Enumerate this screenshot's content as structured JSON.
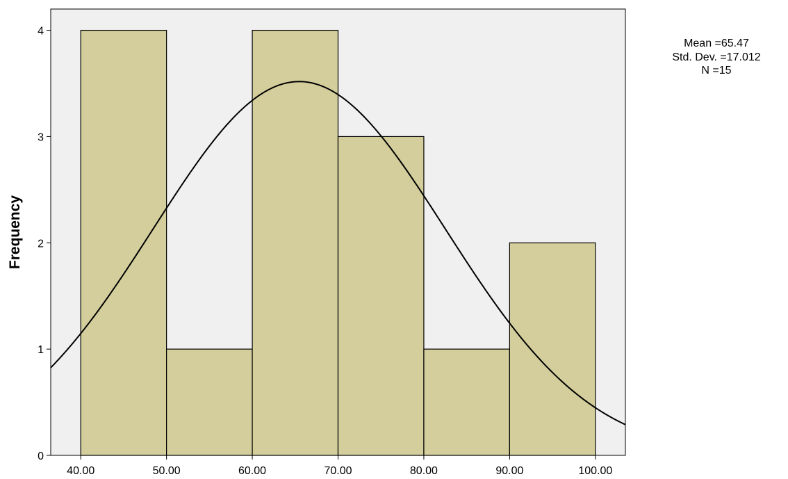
{
  "chart_data": {
    "type": "bar",
    "subtype": "histogram",
    "title": "",
    "xlabel": "",
    "ylabel": "Frequency",
    "bins": [
      {
        "from": 40,
        "to": 50,
        "frequency": 4
      },
      {
        "from": 50,
        "to": 60,
        "frequency": 1
      },
      {
        "from": 60,
        "to": 70,
        "frequency": 4
      },
      {
        "from": 70,
        "to": 80,
        "frequency": 3
      },
      {
        "from": 80,
        "to": 90,
        "frequency": 1
      },
      {
        "from": 90,
        "to": 100,
        "frequency": 2
      }
    ],
    "xlim": [
      36.5,
      103.5
    ],
    "ylim": [
      0,
      4.2
    ],
    "x_ticks": [
      40,
      50,
      60,
      70,
      80,
      90,
      100
    ],
    "x_tick_labels": [
      "40.00",
      "50.00",
      "60.00",
      "70.00",
      "80.00",
      "90.00",
      "100.00"
    ],
    "y_ticks": [
      0,
      1,
      2,
      3,
      4
    ],
    "y_tick_labels": [
      "0",
      "1",
      "2",
      "3",
      "4"
    ],
    "normal_curve": {
      "mean": 65.47,
      "std_dev": 17.012,
      "n": 15,
      "bin_width": 10
    },
    "stats": {
      "mean_label": "Mean =65.47",
      "std_label": "Std. Dev. =17.012",
      "n_label": "N =15"
    },
    "grid": false,
    "colors": {
      "plot_background": "#f0f0f0",
      "bar_fill": "#d3ce9b",
      "bar_stroke": "#000000",
      "curve": "#000000"
    }
  }
}
